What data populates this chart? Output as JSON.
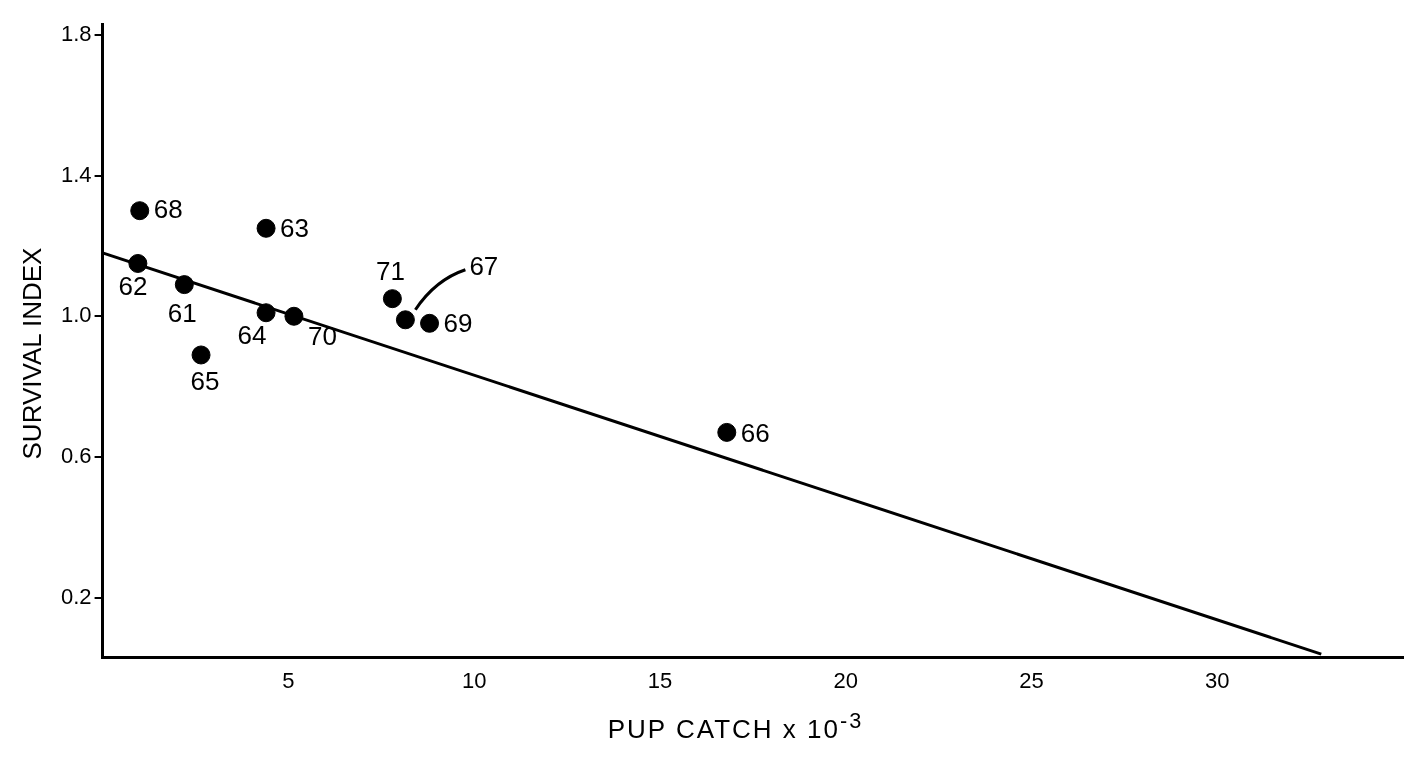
{
  "chart_data": {
    "type": "scatter",
    "xlabel": "PUP CATCH x 10$^{-3}$",
    "ylabel": "SURVIVAL INDEX",
    "xlim": [
      0,
      35
    ],
    "xticks": [
      5,
      10,
      15,
      20,
      25,
      30
    ],
    "ylim": [
      0.03,
      1.83
    ],
    "yticks": [
      0.2,
      0.6,
      {
        "value": 1,
        "label": "1.0"
      },
      1.4,
      1.8
    ],
    "grid": false,
    "legend": false,
    "marker": "circle",
    "series": [
      {
        "color": "#000000",
        "x": [
          2.2,
          0.95,
          4.4,
          4.4,
          2.65,
          16.8,
          8.15,
          1.0,
          8.8,
          5.15,
          7.8
        ],
        "values": [
          1.09,
          1.15,
          1.25,
          1.01,
          0.89,
          0.67,
          0.99,
          1.3,
          0.98,
          1.0,
          1.05
        ]
      },
      {
        "type": "line",
        "color": "#000000",
        "marker": "none",
        "x": [
          0,
          32.8
        ],
        "values": [
          1.18,
          0.04
        ]
      }
    ],
    "annotations": [
      {
        "text": "61",
        "x": 2.2,
        "y": 1.09
      },
      {
        "text": "62",
        "x": 0.95,
        "y": 1.15
      },
      {
        "text": "63",
        "x": 4.4,
        "y": 1.25
      },
      {
        "text": "64",
        "x": 4.4,
        "y": 1.01
      },
      {
        "text": "65",
        "x": 2.65,
        "y": 0.89
      },
      {
        "text": "66",
        "x": 16.8,
        "y": 0.67
      },
      {
        "text": "67",
        "x": 8.15,
        "y": 0.99
      },
      {
        "text": "68",
        "x": 1.0,
        "y": 1.3
      },
      {
        "text": "69",
        "x": 8.8,
        "y": 0.98
      },
      {
        "text": "70",
        "x": 5.15,
        "y": 1.0
      },
      {
        "text": "71",
        "x": 7.8,
        "y": 1.05
      }
    ]
  }
}
